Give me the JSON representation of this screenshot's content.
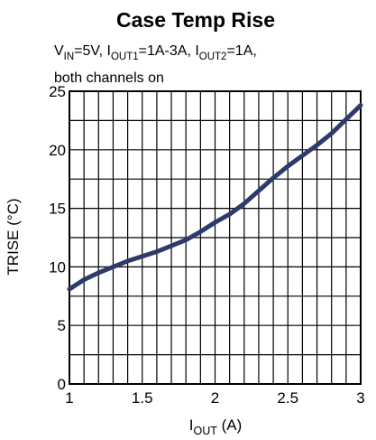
{
  "chart_data": {
    "type": "line",
    "title": "Case Temp Rise",
    "subtitle_parts": [
      {
        "t": "V",
        "sub": false
      },
      {
        "t": "IN",
        "sub": true
      },
      {
        "t": "=5V, I",
        "sub": false
      },
      {
        "t": "OUT1",
        "sub": true
      },
      {
        "t": "=1A-3A, I",
        "sub": false
      },
      {
        "t": "OUT2",
        "sub": true
      },
      {
        "t": "=1A,",
        "sub": false
      }
    ],
    "subtitle_line2": "both channels on",
    "xlabel_main": "I",
    "xlabel_sub": "OUT",
    "xlabel_unit": " (A)",
    "ylabel": "TRISE (°C)",
    "xlim": [
      1,
      3
    ],
    "ylim": [
      0,
      25
    ],
    "xticks": [
      1,
      1.5,
      2,
      2.5,
      3
    ],
    "xtick_labels": [
      "1",
      "1.5",
      "2",
      "2.5",
      "3"
    ],
    "yticks": [
      0,
      5,
      10,
      15,
      20,
      25
    ],
    "ytick_labels": [
      "0",
      "5",
      "10",
      "15",
      "20",
      "25"
    ],
    "grid": true,
    "line_color": "#2e3a6b",
    "series": [
      {
        "x": [
          1.0,
          1.1,
          1.2,
          1.3,
          1.4,
          1.5,
          1.6,
          1.7,
          1.8,
          1.9,
          2.0,
          2.1,
          2.2,
          2.3,
          2.4,
          2.5,
          2.6,
          2.7,
          2.8,
          2.9,
          3.0
        ],
        "values": [
          8.1,
          8.9,
          9.5,
          10.0,
          10.5,
          10.9,
          11.3,
          11.8,
          12.3,
          13.0,
          13.8,
          14.5,
          15.4,
          16.5,
          17.6,
          18.6,
          19.5,
          20.4,
          21.4,
          22.6,
          23.8
        ]
      }
    ]
  }
}
